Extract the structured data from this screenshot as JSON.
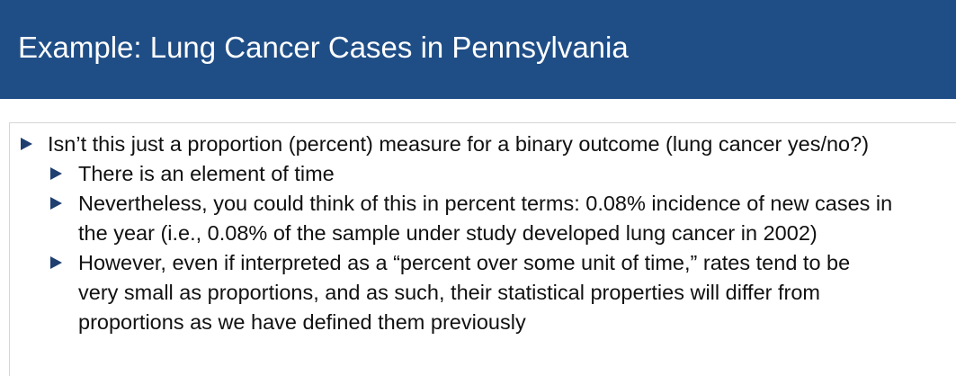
{
  "slide": {
    "title": "Example: Lung Cancer Cases in Pennsylvania",
    "colors": {
      "title_bar": "#1f4e87",
      "title_text": "#ffffff",
      "bullet": "#1f3f70",
      "body_text": "#111111"
    },
    "bullets": [
      {
        "level": 1,
        "icon": "triangle-right-icon",
        "lines": [
          "Isn’t this just a proportion (percent) measure for a binary outcome (lung cancer yes/no?)"
        ]
      },
      {
        "level": 2,
        "icon": "triangle-right-icon",
        "lines": [
          "There is an element of time"
        ]
      },
      {
        "level": 2,
        "icon": "triangle-right-icon",
        "lines": [
          "Nevertheless, you could think of this in percent terms: 0.08% incidence of new cases in",
          "the year (i.e., 0.08% of the sample under study developed lung cancer in 2002)"
        ]
      },
      {
        "level": 2,
        "icon": "triangle-right-icon",
        "lines": [
          "However, even if interpreted as a “percent over some unit of time,” rates tend to be",
          "very small as proportions, and as such, their statistical properties will differ from",
          "proportions as we have defined them previously"
        ]
      }
    ]
  }
}
